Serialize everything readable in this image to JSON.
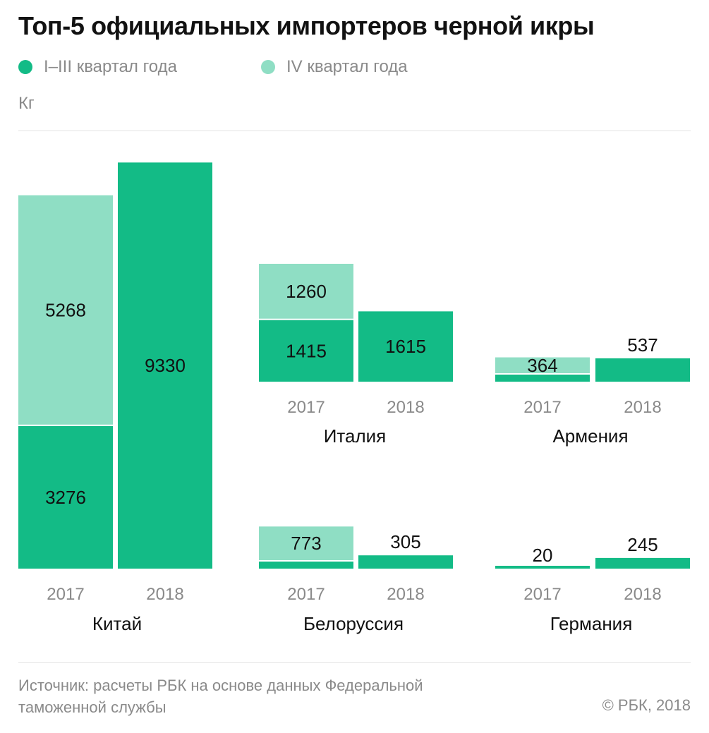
{
  "title": "Топ-5 официальных импортеров черной икры",
  "legend": [
    {
      "label": "I–III квартал года",
      "color": "#13bb86"
    },
    {
      "label": "IV квартал года",
      "color": "#8fdec4"
    }
  ],
  "unit": "Кг",
  "source": "Источник: расчеты РБК на основе данных Федеральной таможенной службы",
  "copyright": "© РБК, 2018",
  "colors": {
    "q1_3": "#13bb86",
    "q4": "#8fdec4",
    "label_text": "#111111",
    "year_text": "#8a8a8a"
  },
  "chart_data": [
    {
      "type": "bar",
      "stacked": true,
      "country": "Китай",
      "categories": [
        "2017",
        "2018"
      ],
      "series": [
        {
          "name": "I–III квартал года",
          "values": [
            3276,
            9330
          ]
        },
        {
          "name": "IV квартал года",
          "values": [
            5268,
            null
          ]
        }
      ]
    },
    {
      "type": "bar",
      "stacked": true,
      "country": "Италия",
      "categories": [
        "2017",
        "2018"
      ],
      "series": [
        {
          "name": "I–III квартал года",
          "values": [
            1415,
            1615
          ]
        },
        {
          "name": "IV квартал года",
          "values": [
            1260,
            null
          ]
        }
      ]
    },
    {
      "type": "bar",
      "stacked": true,
      "country": "Армения",
      "categories": [
        "2017",
        "2018"
      ],
      "series": [
        {
          "name": "I–III квартал года",
          "values": [
            null,
            537
          ]
        },
        {
          "name": "IV квартал года",
          "values": [
            364,
            null
          ]
        }
      ]
    },
    {
      "type": "bar",
      "stacked": true,
      "country": "Белоруссия",
      "categories": [
        "2017",
        "2018"
      ],
      "series": [
        {
          "name": "I–III квартал года",
          "values": [
            null,
            305
          ]
        },
        {
          "name": "IV квартал года",
          "values": [
            773,
            null
          ]
        }
      ]
    },
    {
      "type": "bar",
      "stacked": true,
      "country": "Германия",
      "categories": [
        "2017",
        "2018"
      ],
      "series": [
        {
          "name": "I–III квартал года",
          "values": [
            20,
            245
          ]
        },
        {
          "name": "IV квартал года",
          "values": [
            null,
            null
          ]
        }
      ]
    }
  ]
}
